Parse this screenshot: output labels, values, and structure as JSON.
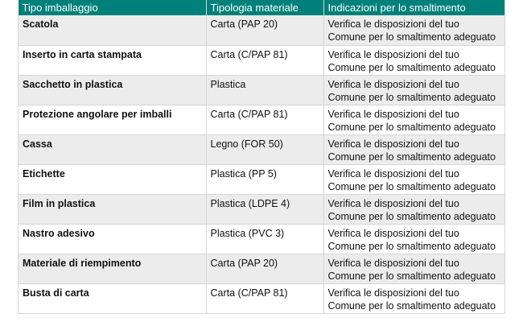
{
  "header": {
    "col1": "Tipo imballaggio",
    "col2": "Tipologia materiale",
    "col3": "Indicazioni per lo smaltimento"
  },
  "colors": {
    "header_bg": "#00807a",
    "row_alt": "#ececec"
  },
  "rows": [
    {
      "tipo": "Scatola",
      "materiale": "Carta (PAP 20)",
      "line1": "Verifica le disposizioni del tuo",
      "line2": "Comune per lo smaltimento adeguato"
    },
    {
      "tipo": "Inserto in carta stampata",
      "materiale": "Carta (C/PAP 81)",
      "line1": "Verifica le disposizioni del tuo",
      "line2": "Comune per lo smaltimento adeguato"
    },
    {
      "tipo": "Sacchetto in plastica",
      "materiale": "Plastica",
      "line1": "Verifica le disposizioni del tuo",
      "line2": "Comune per lo smaltimento adeguato"
    },
    {
      "tipo": "Protezione angolare per imballi",
      "materiale": "Carta (C/PAP 81)",
      "line1": "Verifica le disposizioni del tuo",
      "line2": "Comune per lo smaltimento adeguato"
    },
    {
      "tipo": "Cassa",
      "materiale": "Legno (FOR 50)",
      "line1": "Verifica le disposizioni del tuo",
      "line2": "Comune per lo smaltimento adeguato"
    },
    {
      "tipo": "Etichette",
      "materiale": "Plastica (PP 5)",
      "line1": "Verifica le disposizioni del tuo",
      "line2": "Comune per lo smaltimento adeguato"
    },
    {
      "tipo": "Film in plastica",
      "materiale": "Plastica (LDPE 4)",
      "line1": "Verifica le disposizioni del tuo",
      "line2": "Comune per lo smaltimento adeguato"
    },
    {
      "tipo": "Nastro adesivo",
      "materiale": "Plastica (PVC 3)",
      "line1": "Verifica le disposizioni del tuo",
      "line2": "Comune per lo smaltimento adeguato"
    },
    {
      "tipo": "Materiale di riempimento",
      "materiale": "Carta (PAP 20)",
      "line1": "Verifica le disposizioni del tuo",
      "line2": "Comune per lo smaltimento adeguato"
    },
    {
      "tipo": "Busta di carta",
      "materiale": "Carta (C/PAP 81)",
      "line1": "Verifica le disposizioni del tuo",
      "line2": "Comune per lo smaltimento adeguato"
    }
  ]
}
